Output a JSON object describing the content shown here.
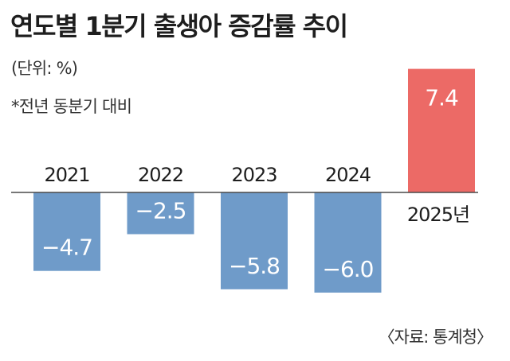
{
  "header": {
    "title": "연도별 1분기 출생아 증감률 추이",
    "unit": "(단위: %)",
    "note": "*전년 동분기 대비"
  },
  "footer": {
    "source": "〈자료: 통계청〉"
  },
  "colors": {
    "negative_bar": "#6f9bc9",
    "positive_bar": "#ec6a66",
    "baseline": "#4a4a4a",
    "value_label": "#ffffff",
    "category_label": "#1e1e1e"
  },
  "chart_data": {
    "type": "bar",
    "categories": [
      "2021",
      "2022",
      "2023",
      "2024",
      "2025년"
    ],
    "values": [
      -4.7,
      -2.5,
      -5.8,
      -6.0,
      7.4
    ],
    "value_labels": [
      "−4.7",
      "−2.5",
      "−5.8",
      "−6.0",
      "7.4"
    ],
    "title": "연도별 1분기 출생아 증감률 추이",
    "ylabel": "",
    "xlabel": "",
    "ylim": [
      -6.0,
      7.4
    ],
    "grid": false,
    "legend": "none"
  }
}
